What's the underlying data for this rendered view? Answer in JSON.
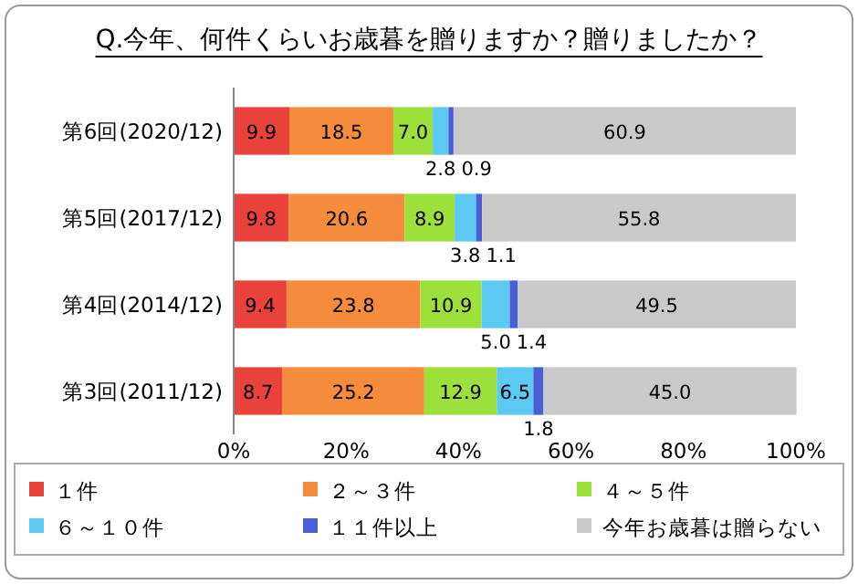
{
  "chart_data": {
    "type": "bar",
    "orientation": "horizontal",
    "stacked": true,
    "title": "Q.今年、何件くらいお歳暮を贈りますか？贈りましたか？",
    "categories": [
      "第6回(2020/12)",
      "第5回(2017/12)",
      "第4回(2014/12)",
      "第3回(2011/12)"
    ],
    "series": [
      {
        "name": "１件",
        "color": "#e8423a",
        "values": [
          9.9,
          9.8,
          9.4,
          8.7
        ],
        "value_labels": [
          "9.9",
          "9.8",
          "9.4",
          "8.7"
        ]
      },
      {
        "name": "２～３件",
        "color": "#f58b3d",
        "values": [
          18.5,
          20.6,
          23.8,
          25.2
        ],
        "value_labels": [
          "18.5",
          "20.6",
          "23.8",
          "25.2"
        ]
      },
      {
        "name": "４～５件",
        "color": "#9de03c",
        "values": [
          7.0,
          8.9,
          10.9,
          12.9
        ],
        "value_labels": [
          "7.0",
          "8.9",
          "10.9",
          "12.9"
        ]
      },
      {
        "name": "６～１０件",
        "color": "#5cc9f2",
        "values": [
          2.8,
          3.8,
          5.0,
          6.5
        ],
        "value_labels": [
          "2.8",
          "3.8",
          "5.0",
          "6.5"
        ]
      },
      {
        "name": "１１件以上",
        "color": "#4a5fd6",
        "values": [
          0.9,
          1.1,
          1.4,
          1.8
        ],
        "value_labels": [
          "0.9",
          "1.1",
          "1.4",
          "1.8"
        ]
      },
      {
        "name": "今年お歳暮は贈らない",
        "color": "#c9c9c9",
        "values": [
          60.9,
          55.8,
          49.5,
          45.0
        ],
        "value_labels": [
          "60.9",
          "55.8",
          "49.5",
          "45.0"
        ]
      }
    ],
    "xlim": [
      0,
      100
    ],
    "xticks": [
      {
        "value": 0,
        "label": "0%"
      },
      {
        "value": 20,
        "label": "20%"
      },
      {
        "value": 40,
        "label": "40%"
      },
      {
        "value": 60,
        "label": "60%"
      },
      {
        "value": 80,
        "label": "80%"
      },
      {
        "value": 100,
        "label": "100%"
      }
    ],
    "legend": "bottom",
    "grid": false
  }
}
